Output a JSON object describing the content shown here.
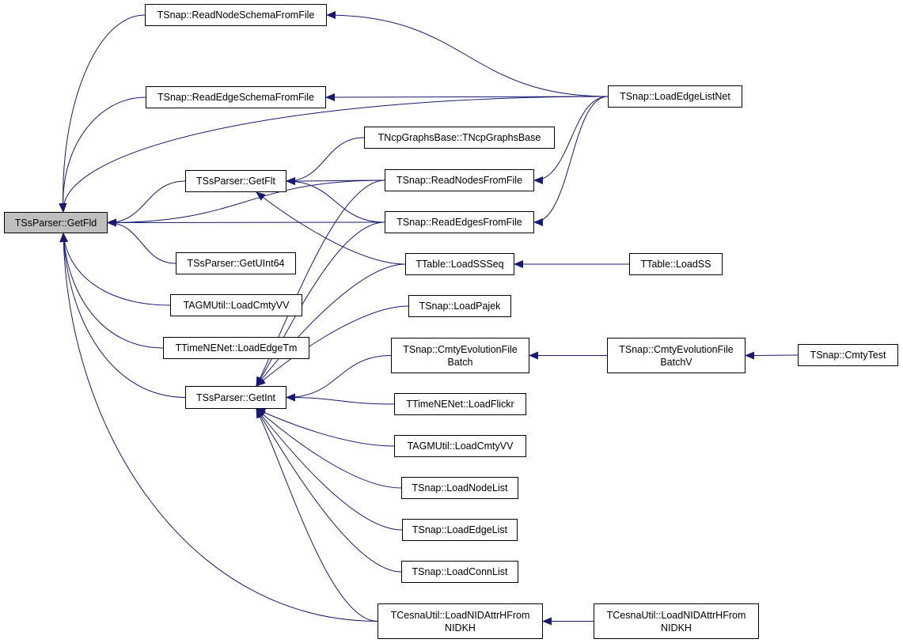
{
  "colors": {
    "edge": "#191970",
    "current_fill": "#bfbfbf",
    "node_border": "#000000"
  },
  "nodes": [
    {
      "id": "getfld",
      "label": "TSsParser::GetFld",
      "current": true
    },
    {
      "id": "readnodeschema",
      "label": "TSnap::ReadNodeSchemaFromFile"
    },
    {
      "id": "readedgeschema",
      "label": "TSnap::ReadEdgeSchemaFromFile"
    },
    {
      "id": "getflt",
      "label": "TSsParser::GetFlt"
    },
    {
      "id": "getuint64",
      "label": "TSsParser::GetUInt64"
    },
    {
      "id": "agmloadcmty1",
      "label": "TAGMUtil::LoadCmtyVV"
    },
    {
      "id": "loadedgetm",
      "label": "TTimeNENet::LoadEdgeTm"
    },
    {
      "id": "getint",
      "label": "TSsParser::GetInt"
    },
    {
      "id": "ncpgraphs",
      "label": "TNcpGraphsBase::TNcpGraphsBase"
    },
    {
      "id": "readnodes",
      "label": "TSnap::ReadNodesFromFile"
    },
    {
      "id": "readedges",
      "label": "TSnap::ReadEdgesFromFile"
    },
    {
      "id": "loadssseq",
      "label": "TTable::LoadSSSeq"
    },
    {
      "id": "loadpajek",
      "label": "TSnap::LoadPajek"
    },
    {
      "id": "cmtybatch",
      "label": "TSnap::CmtyEvolutionFile\nBatch"
    },
    {
      "id": "loadflickr",
      "label": "TTimeNENet::LoadFlickr"
    },
    {
      "id": "agmloadcmty2",
      "label": "TAGMUtil::LoadCmtyVV"
    },
    {
      "id": "loadnodelist",
      "label": "TSnap::LoadNodeList"
    },
    {
      "id": "loadedgelist",
      "label": "TSnap::LoadEdgeList"
    },
    {
      "id": "loadconnlist",
      "label": "TSnap::LoadConnList"
    },
    {
      "id": "cesna1",
      "label": "TCesnaUtil::LoadNIDAttrHFrom\nNIDKH"
    },
    {
      "id": "loadedgelistnet",
      "label": "TSnap::LoadEdgeListNet"
    },
    {
      "id": "loadss",
      "label": "TTable::LoadSS"
    },
    {
      "id": "cmtybatchv",
      "label": "TSnap::CmtyEvolutionFile\nBatchV"
    },
    {
      "id": "cesna2",
      "label": "TCesnaUtil::LoadNIDAttrHFrom\nNIDKH"
    },
    {
      "id": "cmtytest",
      "label": "TSnap::CmtyTest"
    }
  ],
  "edges": [
    [
      "readnodeschema",
      "getfld"
    ],
    [
      "loadedgelistnet",
      "getfld"
    ],
    [
      "readedgeschema",
      "getfld"
    ],
    [
      "readnodes",
      "getfld"
    ],
    [
      "getflt",
      "getfld"
    ],
    [
      "readedges",
      "getfld"
    ],
    [
      "getuint64",
      "getfld"
    ],
    [
      "agmloadcmty1",
      "getfld"
    ],
    [
      "loadedgetm",
      "getfld"
    ],
    [
      "getint",
      "getfld"
    ],
    [
      "cesna1",
      "getfld"
    ],
    [
      "loadedgelistnet",
      "readnodeschema"
    ],
    [
      "loadedgelistnet",
      "readedgeschema"
    ],
    [
      "loadedgelistnet",
      "readnodes"
    ],
    [
      "loadedgelistnet",
      "readedges"
    ],
    [
      "ncpgraphs",
      "getflt"
    ],
    [
      "readnodes",
      "getflt"
    ],
    [
      "readedges",
      "getflt"
    ],
    [
      "loadssseq",
      "getflt"
    ],
    [
      "loadss",
      "loadssseq"
    ],
    [
      "readnodes",
      "getint"
    ],
    [
      "readedges",
      "getint"
    ],
    [
      "loadssseq",
      "getint"
    ],
    [
      "loadpajek",
      "getint"
    ],
    [
      "cmtybatch",
      "getint"
    ],
    [
      "loadflickr",
      "getint"
    ],
    [
      "agmloadcmty2",
      "getint"
    ],
    [
      "loadnodelist",
      "getint"
    ],
    [
      "loadedgelist",
      "getint"
    ],
    [
      "loadconnlist",
      "getint"
    ],
    [
      "cesna1",
      "getint"
    ],
    [
      "cmtybatchv",
      "cmtybatch"
    ],
    [
      "cmtytest",
      "cmtybatchv"
    ],
    [
      "cesna2",
      "cesna1"
    ]
  ]
}
